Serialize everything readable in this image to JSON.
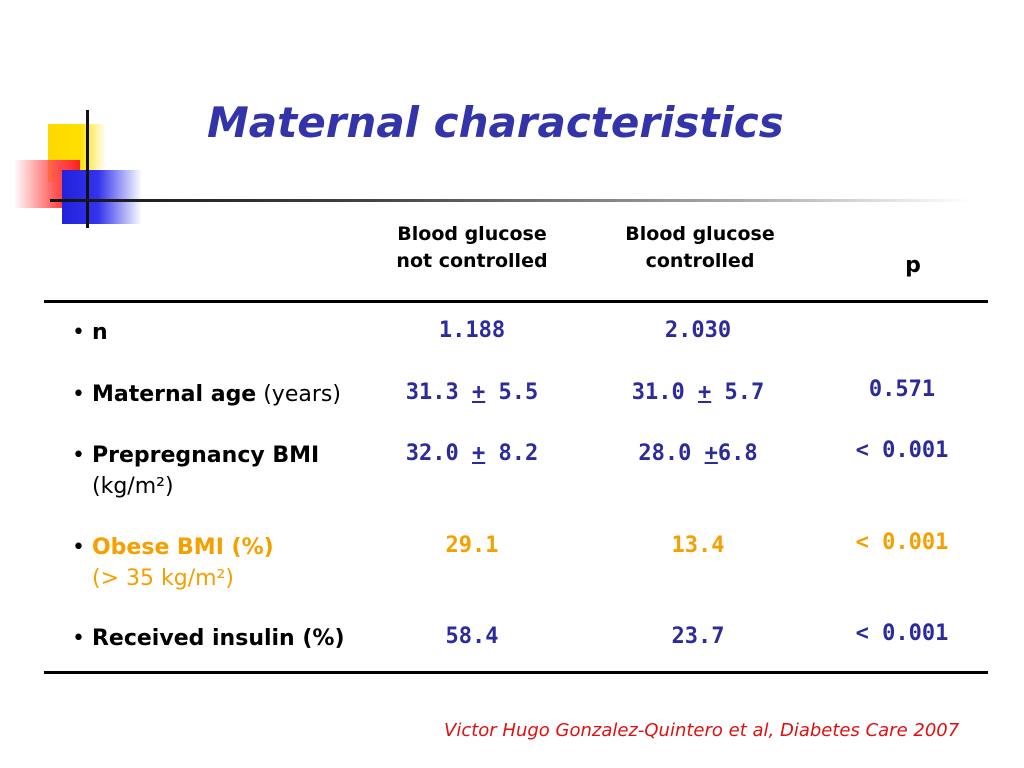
{
  "title": "Maternal characteristics",
  "columns": {
    "not_controlled": [
      "Blood glucose",
      "not controlled"
    ],
    "controlled": [
      "Blood glucose",
      "controlled"
    ],
    "p": "p"
  },
  "rows": [
    {
      "label_bold": "n",
      "label_rest": "",
      "label_line2": "",
      "not_controlled": "1.188",
      "controlled": "2.030",
      "p": ""
    },
    {
      "label_bold": "Maternal age",
      "label_rest": " (years)",
      "label_line2": "",
      "nc_mean": "31.3",
      "nc_pm": "+",
      "nc_sd": "5.5",
      "c_mean": "31.0",
      "c_pm": "+",
      "c_sd": "5.7",
      "p": "0.571"
    },
    {
      "label_bold": "Prepregnancy BMI",
      "label_rest": "",
      "label_line2": "(kg/m²)",
      "nc_mean": "32.0",
      "nc_pm": "+",
      "nc_sd": "8.2",
      "c_mean": "28.0",
      "c_pm": "+",
      "c_sd": "6.8",
      "p": "< 0.001"
    },
    {
      "label_bold": "Obese BMI (%)",
      "label_rest": "",
      "label_line2": "(> 35 kg/m²)",
      "not_controlled": "29.1",
      "controlled": "13.4",
      "p": "< 0.001"
    },
    {
      "label_bold": "Received insulin (%)",
      "label_rest": "",
      "label_line2": "",
      "not_controlled": "58.4",
      "controlled": "23.7",
      "p": "< 0.001"
    }
  ],
  "citation": "Victor Hugo Gonzalez-Quintero et al, Diabetes Care 2007",
  "colors": {
    "title": "#3333aa",
    "values": "#2b2b9c",
    "highlight": "#f5a000",
    "citation": "#e01010"
  }
}
